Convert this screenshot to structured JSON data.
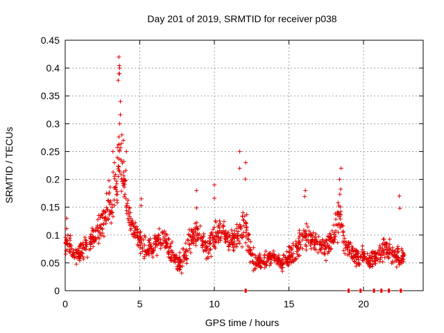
{
  "chart_data": {
    "type": "scatter",
    "title": "Day 201 of 2019, SRMTID for receiver p038",
    "xlabel": "GPS time / hours",
    "ylabel": "SRMTID / TECUs",
    "xlim": [
      0,
      24
    ],
    "ylim": [
      0,
      0.45
    ],
    "x_ticks": [
      0,
      5,
      10,
      15,
      20
    ],
    "x_tick_labels": [
      "0",
      "5",
      "10",
      "15",
      "20"
    ],
    "y_ticks": [
      0,
      0.05,
      0.1,
      0.15,
      0.2,
      0.25,
      0.3,
      0.35,
      0.4,
      0.45
    ],
    "y_tick_labels": [
      "0",
      "0.05",
      "0.1",
      "0.15",
      "0.2",
      "0.25",
      "0.3",
      "0.35",
      "0.4",
      "0.45"
    ],
    "grid": true,
    "marker": "+",
    "color": "#e00000",
    "series": [
      {
        "name": "p038",
        "envelope": [
          [
            0.0,
            0.08,
            0.03
          ],
          [
            0.3,
            0.085,
            0.03
          ],
          [
            0.6,
            0.06,
            0.02
          ],
          [
            1.0,
            0.07,
            0.025
          ],
          [
            1.5,
            0.085,
            0.03
          ],
          [
            2.0,
            0.1,
            0.03
          ],
          [
            2.5,
            0.12,
            0.04
          ],
          [
            2.9,
            0.16,
            0.05
          ],
          [
            3.2,
            0.15,
            0.05
          ],
          [
            3.5,
            0.22,
            0.08
          ],
          [
            3.7,
            0.25,
            0.08
          ],
          [
            3.9,
            0.2,
            0.06
          ],
          [
            4.2,
            0.14,
            0.05
          ],
          [
            4.6,
            0.11,
            0.04
          ],
          [
            5.0,
            0.09,
            0.03
          ],
          [
            5.5,
            0.07,
            0.025
          ],
          [
            6.0,
            0.08,
            0.03
          ],
          [
            6.5,
            0.1,
            0.035
          ],
          [
            7.0,
            0.075,
            0.03
          ],
          [
            7.5,
            0.05,
            0.025
          ],
          [
            8.0,
            0.06,
            0.03
          ],
          [
            8.5,
            0.1,
            0.035
          ],
          [
            9.0,
            0.11,
            0.035
          ],
          [
            9.5,
            0.07,
            0.03
          ],
          [
            10.0,
            0.1,
            0.035
          ],
          [
            10.5,
            0.11,
            0.035
          ],
          [
            11.0,
            0.085,
            0.03
          ],
          [
            11.5,
            0.09,
            0.035
          ],
          [
            12.0,
            0.12,
            0.05
          ],
          [
            12.5,
            0.06,
            0.03
          ],
          [
            13.0,
            0.05,
            0.02
          ],
          [
            13.5,
            0.055,
            0.02
          ],
          [
            14.0,
            0.06,
            0.02
          ],
          [
            14.5,
            0.05,
            0.02
          ],
          [
            15.0,
            0.06,
            0.025
          ],
          [
            15.5,
            0.075,
            0.03
          ],
          [
            16.0,
            0.1,
            0.035
          ],
          [
            16.5,
            0.09,
            0.03
          ],
          [
            17.0,
            0.085,
            0.03
          ],
          [
            17.5,
            0.075,
            0.03
          ],
          [
            18.0,
            0.1,
            0.04
          ],
          [
            18.4,
            0.14,
            0.05
          ],
          [
            18.8,
            0.08,
            0.03
          ],
          [
            19.5,
            0.06,
            0.025
          ],
          [
            20.0,
            0.06,
            0.025
          ],
          [
            20.5,
            0.055,
            0.02
          ],
          [
            21.0,
            0.06,
            0.03
          ],
          [
            21.5,
            0.08,
            0.04
          ],
          [
            22.0,
            0.065,
            0.025
          ],
          [
            22.5,
            0.06,
            0.025
          ],
          [
            22.8,
            0.06,
            0.02
          ]
        ],
        "spikes": [
          [
            3.6,
            0.42
          ],
          [
            3.65,
            0.4
          ],
          [
            3.6,
            0.39
          ],
          [
            3.7,
            0.34
          ],
          [
            3.65,
            0.3
          ],
          [
            3.8,
            0.28
          ],
          [
            3.9,
            0.27
          ],
          [
            4.1,
            0.25
          ],
          [
            3.2,
            0.25
          ],
          [
            3.3,
            0.23
          ],
          [
            11.7,
            0.25
          ],
          [
            12.1,
            0.23
          ],
          [
            18.5,
            0.22
          ],
          [
            18.4,
            0.2
          ],
          [
            22.4,
            0.17
          ],
          [
            16.1,
            0.18
          ],
          [
            8.8,
            0.18
          ],
          [
            10.0,
            0.19
          ],
          [
            5.1,
            0.165
          ],
          [
            0.1,
            0.13
          ]
        ],
        "zeros": [
          19.0,
          19.8,
          20.7,
          21.2,
          21.7,
          22.5,
          12.1
        ]
      }
    ]
  }
}
